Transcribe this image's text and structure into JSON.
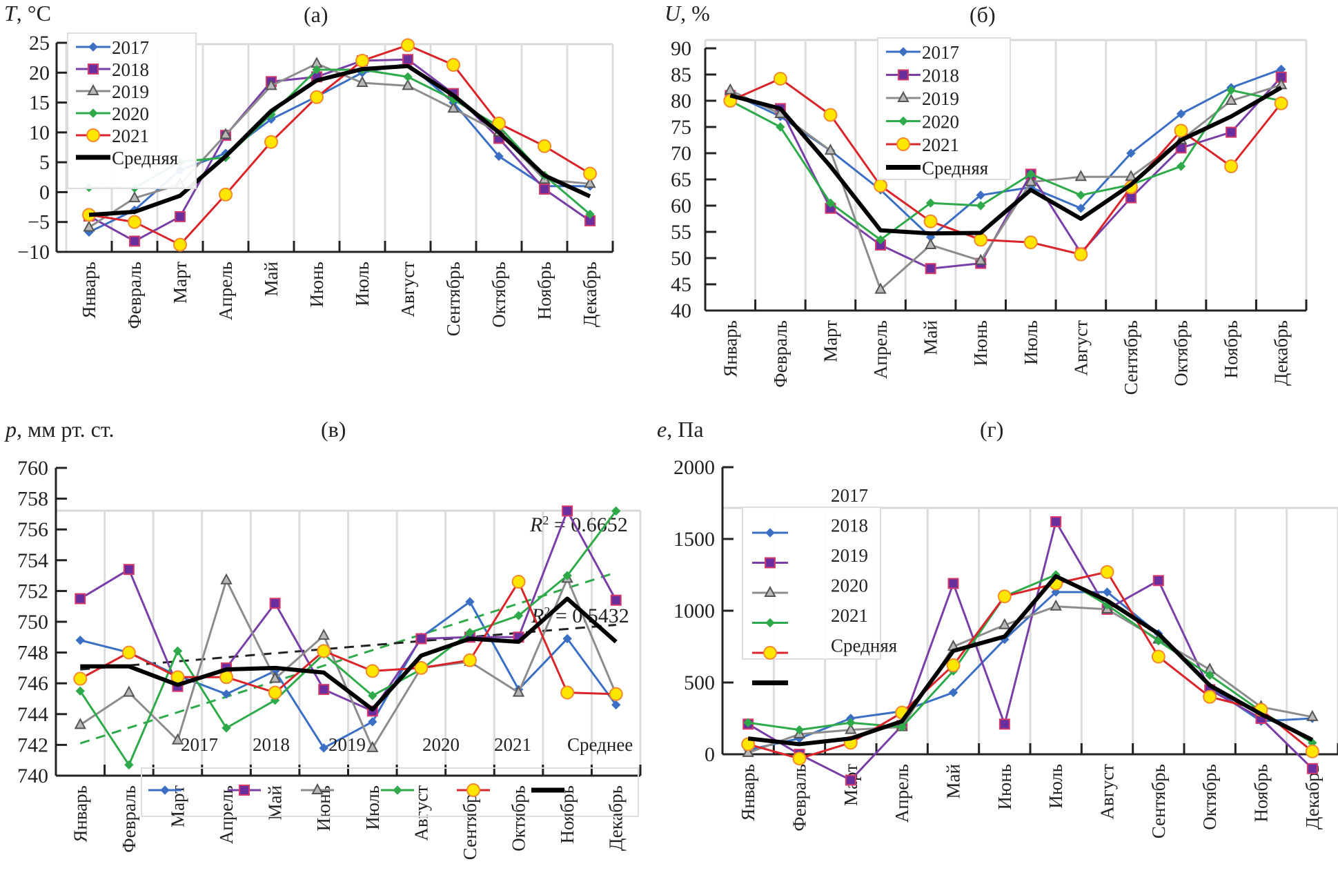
{
  "chart_data": [
    {
      "id": "a",
      "type": "line",
      "panel_label": "(а)",
      "ylabel": "T, °C",
      "ylabel_var": "T",
      "ylabel_unit": ", °C",
      "ylim": [
        -10,
        25
      ],
      "yticks": [
        -10,
        -5,
        0,
        5,
        10,
        15,
        20,
        25
      ],
      "grid": "vertical",
      "legend": "top-left",
      "categories": [
        "Январь",
        "Февраль",
        "Март",
        "Апрель",
        "Май",
        "Июнь",
        "Июль",
        "Август",
        "Сентябрь",
        "Октябрь",
        "Ноябрь",
        "Декабрь"
      ],
      "series": [
        {
          "name": "2017",
          "color": "#3b6fc4",
          "marker": "diamond",
          "values": [
            -6.7,
            -3.0,
            3.7,
            6.5,
            12.2,
            16.0,
            20.0,
            21.5,
            15.0,
            6.0,
            1.0,
            1.0
          ]
        },
        {
          "name": "2018",
          "color": "#7a3fa6",
          "marker": "square",
          "values": [
            -4.0,
            -8.2,
            -4.1,
            9.5,
            18.5,
            19.3,
            22.0,
            22.2,
            16.5,
            9.0,
            0.5,
            -4.8
          ]
        },
        {
          "name": "2019",
          "color": "#8c8c8c",
          "marker": "triangle",
          "values": [
            -5.9,
            -1.0,
            1.3,
            9.6,
            17.8,
            21.5,
            18.3,
            17.8,
            14.0,
            10.0,
            2.1,
            1.4
          ]
        },
        {
          "name": "2020",
          "color": "#2eaa4a",
          "marker": "diamond",
          "values": [
            0.8,
            0.7,
            5.1,
            5.8,
            13.0,
            20.5,
            20.5,
            19.3,
            15.5,
            11.0,
            2.8,
            -3.7
          ]
        },
        {
          "name": "2021",
          "color": "#d9242a",
          "marker": "circle",
          "values": [
            -3.8,
            -5.0,
            -8.8,
            -0.4,
            8.4,
            15.9,
            22.0,
            24.6,
            21.3,
            11.5,
            7.7,
            3.1
          ]
        },
        {
          "name": "Средняя",
          "color": "#000000",
          "marker": "none",
          "bold": true,
          "values": [
            -3.8,
            -3.3,
            -0.6,
            6.0,
            13.6,
            18.7,
            20.6,
            21.1,
            16.2,
            10.0,
            2.8,
            -0.7
          ]
        }
      ]
    },
    {
      "id": "b",
      "type": "line",
      "panel_label": "(б)",
      "ylabel": "U, %",
      "ylabel_var": "U",
      "ylabel_unit": ", %",
      "ylim": [
        40,
        90
      ],
      "yticks": [
        40,
        45,
        50,
        55,
        60,
        65,
        70,
        75,
        80,
        85,
        90
      ],
      "grid": "vertical",
      "legend": "top-center",
      "categories": [
        "Январь",
        "Февраль",
        "Март",
        "Апрель",
        "Май",
        "Июнь",
        "Июль",
        "Август",
        "Сентябрь",
        "Октябрь",
        "Ноябрь",
        "Декабрь"
      ],
      "series": [
        {
          "name": "2017",
          "color": "#3b6fc4",
          "marker": "diamond",
          "values": [
            81.5,
            77,
            70.5,
            63,
            54,
            62,
            63.5,
            59.5,
            70,
            77.5,
            82.5,
            86
          ]
        },
        {
          "name": "2018",
          "color": "#7a3fa6",
          "marker": "square",
          "values": [
            81,
            78.5,
            59.5,
            52.5,
            48,
            49,
            66,
            51,
            61.5,
            71,
            74,
            84.5
          ]
        },
        {
          "name": "2019",
          "color": "#8c8c8c",
          "marker": "triangle",
          "values": [
            82,
            77.5,
            70.5,
            44,
            52.5,
            49.5,
            64.5,
            65.5,
            65.5,
            72.5,
            80,
            83
          ]
        },
        {
          "name": "2020",
          "color": "#2eaa4a",
          "marker": "diamond",
          "values": [
            80,
            75,
            60.5,
            53.5,
            60.5,
            60,
            66,
            62,
            64,
            67.5,
            82,
            80
          ]
        },
        {
          "name": "2021",
          "color": "#d9242a",
          "marker": "circle",
          "values": [
            80,
            84.2,
            77.3,
            63.8,
            57,
            53.5,
            53,
            50.7,
            63.5,
            74.3,
            67.5,
            79.5
          ]
        },
        {
          "name": "Средняя",
          "color": "#000000",
          "marker": "none",
          "bold": true,
          "values": [
            81,
            78.5,
            67.5,
            55.3,
            54.7,
            54.8,
            63,
            57.5,
            64,
            72.5,
            77,
            82.5
          ]
        }
      ]
    },
    {
      "id": "c",
      "type": "line",
      "panel_label": "(в)",
      "ylabel": "p, мм рт. ст.",
      "ylabel_var": "p",
      "ylabel_unit": ", мм рт. ст.",
      "ylim": [
        740,
        760
      ],
      "yticks": [
        740,
        742,
        744,
        746,
        748,
        750,
        752,
        754,
        756,
        758,
        760
      ],
      "grid": "vertical",
      "legend": "bottom (overlapping x-axis)",
      "legend_labels": [
        "2017",
        "2018",
        "2019",
        "2020",
        "2021",
        "Среднее"
      ],
      "categories": [
        "Январь",
        "Февраль",
        "Март",
        "Апрель",
        "Май",
        "Июнь",
        "Июль",
        "Август",
        "Сентябрь",
        "Октябрь",
        "Ноябрь",
        "Декабрь"
      ],
      "series": [
        {
          "name": "2017",
          "color": "#3b6fc4",
          "marker": "diamond",
          "values": [
            748.8,
            748.0,
            746.5,
            745.3,
            746.8,
            741.8,
            743.5,
            749.0,
            751.3,
            745.6,
            748.9,
            744.6
          ]
        },
        {
          "name": "2018",
          "color": "#7a3fa6",
          "marker": "square",
          "values": [
            751.5,
            753.4,
            745.8,
            747.0,
            751.2,
            745.6,
            744.2,
            748.9,
            749.0,
            749.0,
            757.2,
            751.4
          ]
        },
        {
          "name": "2019",
          "color": "#8c8c8c",
          "marker": "triangle",
          "values": [
            743.3,
            745.4,
            742.3,
            752.7,
            746.3,
            749.1,
            741.8,
            747.0,
            747.4,
            745.4,
            752.8,
            745.3
          ]
        },
        {
          "name": "2020",
          "color": "#2eaa4a",
          "marker": "diamond",
          "values": [
            745.5,
            740.7,
            748.1,
            743.1,
            744.9,
            747.9,
            745.2,
            746.9,
            749.3,
            750.4,
            753.0,
            757.2
          ]
        },
        {
          "name": "2021",
          "color": "#d9242a",
          "marker": "circle",
          "values": [
            746.3,
            748.0,
            746.4,
            746.4,
            745.4,
            748.1,
            746.8,
            747.0,
            747.5,
            752.6,
            745.4,
            745.3
          ]
        },
        {
          "name": "Среднее",
          "color": "#000000",
          "marker": "none",
          "bold": true,
          "values": [
            747.1,
            747.1,
            745.9,
            746.9,
            747.0,
            746.7,
            744.3,
            747.8,
            748.9,
            748.7,
            751.5,
            748.7
          ]
        }
      ],
      "trendlines": [
        {
          "of": "2020",
          "color": "#2eaa4a",
          "style": "dashed",
          "start": 742.1,
          "end": 753.2,
          "r2_label": "R² = 0.6652",
          "r2_var": "R",
          "r2_sup": "2",
          "r2_rest": " = 0.6652"
        },
        {
          "of": "Среднее",
          "color": "#222222",
          "style": "dashed",
          "start": 746.9,
          "end": 749.8,
          "r2_label": "R² = 0.5432",
          "r2_var": "R",
          "r2_sup": "2",
          "r2_rest": " = 0.5432"
        }
      ]
    },
    {
      "id": "d",
      "type": "line",
      "panel_label": "(г)",
      "ylabel": "e, Па",
      "ylabel_var": "e",
      "ylabel_unit": ", Па",
      "ylim": [
        0,
        2000
      ],
      "yticks": [
        0,
        500,
        1000,
        1500,
        2000
      ],
      "grid": "vertical",
      "legend": "top-left",
      "legend_labels": [
        "2017",
        "2018",
        "2019",
        "2020",
        "2021",
        "Средняя"
      ],
      "categories": [
        "Январь",
        "Февраль",
        "Март",
        "Апрель",
        "Май",
        "Июнь",
        "Июль",
        "Август",
        "Сентябрь",
        "Октябрь",
        "Ноябрь",
        "Декабрь"
      ],
      "series": [
        {
          "name": "2017",
          "color": "#3b6fc4",
          "marker": "diamond",
          "values": [
            30,
            110,
            250,
            300,
            430,
            800,
            1130,
            1130,
            840,
            470,
            230,
            250
          ]
        },
        {
          "name": "2018",
          "color": "#7a3fa6",
          "marker": "square",
          "values": [
            210,
            0,
            -180,
            200,
            1190,
            210,
            1620,
            1010,
            1210,
            450,
            250,
            -100
          ]
        },
        {
          "name": "2019",
          "color": "#8c8c8c",
          "marker": "triangle",
          "values": [
            10,
            140,
            170,
            190,
            750,
            900,
            1030,
            1010,
            800,
            590,
            330,
            260
          ]
        },
        {
          "name": "2020",
          "color": "#2eaa4a",
          "marker": "diamond",
          "values": [
            220,
            170,
            220,
            190,
            580,
            1100,
            1250,
            1040,
            790,
            550,
            300,
            80
          ]
        },
        {
          "name": "2021",
          "color": "#d9242a",
          "marker": "circle",
          "values": [
            70,
            -30,
            80,
            290,
            620,
            1100,
            1190,
            1270,
            680,
            400,
            310,
            20
          ]
        },
        {
          "name": "Средняя",
          "color": "#000000",
          "marker": "none",
          "bold": true,
          "values": [
            110,
            70,
            110,
            230,
            720,
            820,
            1240,
            1070,
            840,
            480,
            280,
            100
          ]
        }
      ]
    }
  ]
}
